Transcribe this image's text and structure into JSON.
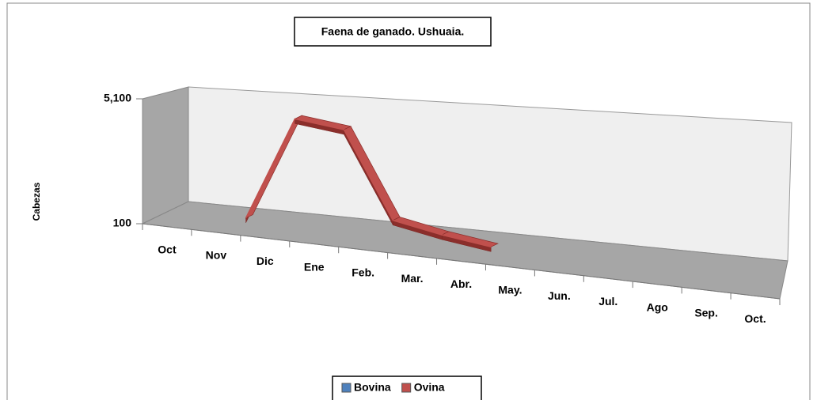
{
  "chart_data": {
    "type": "line3d",
    "title": "Faena de ganado. Ushuaia.",
    "y_label": "Cabezas",
    "categories": [
      "Oct",
      "Nov",
      "Dic",
      "Ene",
      "Feb.",
      "Mar.",
      "Abr.",
      "May.",
      "Jun.",
      "Jul.",
      "Ago",
      "Sep.",
      "Oct."
    ],
    "series": [
      {
        "name": "Bovina",
        "color": "#4f81bd",
        "values": [
          null,
          null,
          null,
          null,
          null,
          null,
          null,
          null,
          null,
          null,
          null,
          null,
          null
        ]
      },
      {
        "name": "Ovina",
        "color": "#c0504d",
        "values": [
          null,
          100,
          4300,
          4100,
          700,
          350,
          100,
          null,
          null,
          null,
          null,
          null,
          null
        ]
      }
    ],
    "ylim": [
      100,
      5100
    ],
    "yticks": [
      100,
      {
        "value": 5100,
        "label": "5,100"
      }
    ],
    "legend": "bottom"
  }
}
